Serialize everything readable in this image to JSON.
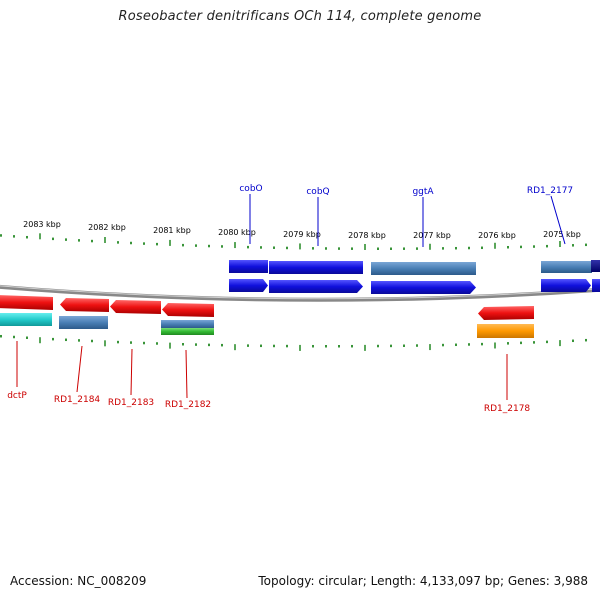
{
  "header": {
    "title": "Roseobacter denitrificans OCh 114, complete genome"
  },
  "footer": {
    "accession": "Accession: NC_008209",
    "summary": "Topology: circular; Length: 4,133,097 bp; Genes: 3,988"
  },
  "ruler": {
    "labels": [
      "2083 kbp",
      "2082 kbp",
      "2081 kbp",
      "2080 kbp",
      "2079 kbp",
      "2078 kbp",
      "2077 kbp",
      "2076 kbp",
      "2075 kbp"
    ]
  },
  "genes": {
    "top": [
      "cobO",
      "cobQ",
      "ggtA",
      "RD1_2177"
    ],
    "bottom": [
      "dctP",
      "RD1_2184",
      "RD1_2183",
      "RD1_2182",
      "RD1_2178"
    ]
  },
  "colors": {
    "forward_cds": "#1010dd",
    "forward_gene": "#4a7fb5",
    "reverse_cds": "#ee1111",
    "reverse_gene": "#4a7fb5",
    "cyan_feature": "#22cccc",
    "green_feature": "#33bb33",
    "orange_feature": "#ff9900",
    "tick_color": "#228822",
    "backbone": "#888888"
  }
}
